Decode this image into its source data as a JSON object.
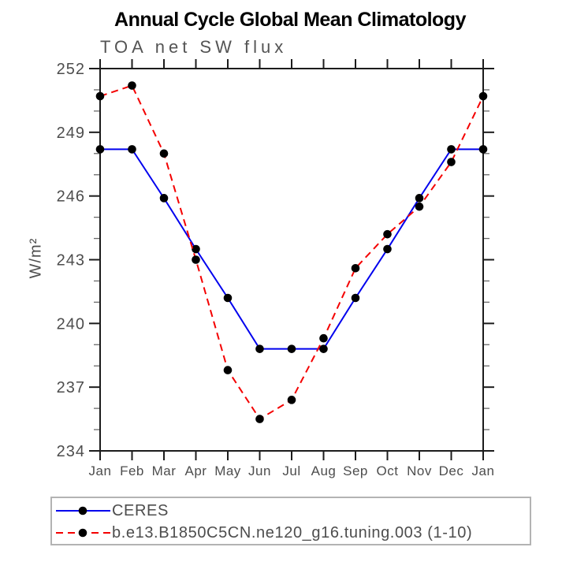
{
  "chart_data": {
    "type": "line",
    "title": "Annual Cycle Global Mean Climatology",
    "subtitle": "TOA net SW flux",
    "ylabel": "W/m²",
    "xlabel": "",
    "categories": [
      "Jan",
      "Feb",
      "Mar",
      "Apr",
      "May",
      "Jun",
      "Jul",
      "Aug",
      "Sep",
      "Oct",
      "Nov",
      "Dec",
      "Jan"
    ],
    "ylim": [
      234,
      252
    ],
    "yticks": [
      234,
      237,
      240,
      243,
      246,
      249,
      252
    ],
    "yminor_interval": 1,
    "grid": false,
    "legend_position": "below-box",
    "series": [
      {
        "name": "CERES",
        "color": "#0000ee",
        "style": "solid",
        "marker": "black-dot",
        "values": [
          248.2,
          248.2,
          245.9,
          243.5,
          241.2,
          238.8,
          238.8,
          238.8,
          241.2,
          243.5,
          245.9,
          248.2,
          248.2
        ]
      },
      {
        "name": "b.e13.B1850C5CN.ne120_g16.tuning.003 (1-10)",
        "color": "#f40000",
        "style": "dashed",
        "marker": "black-dot",
        "values": [
          250.7,
          251.2,
          248.0,
          243.0,
          237.8,
          235.5,
          236.4,
          239.3,
          242.6,
          244.2,
          245.5,
          247.6,
          250.7
        ]
      }
    ]
  },
  "colors": {
    "background": "#ffffff",
    "frame": "#1c1c1c",
    "minor_tick": "#6a6a6a",
    "tick_label": "#4d4d4d",
    "month_label": "#4d4d4d",
    "subtitle_text": "#545454",
    "title_text": "#000000",
    "marker": "#000000",
    "legend_border": "#b3b3b3",
    "legend_text": "#4d4d4d"
  }
}
